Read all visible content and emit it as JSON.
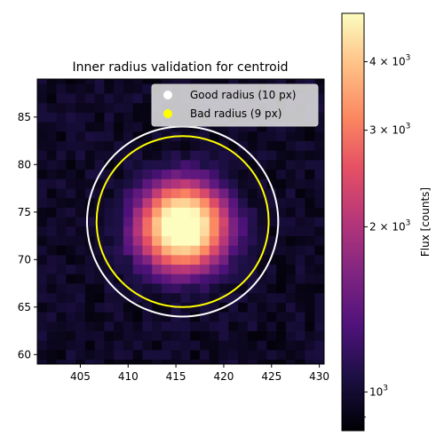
{
  "chart_data": {
    "type": "heatmap",
    "title": "Inner radius validation for centroid",
    "xlabel": "",
    "ylabel": "",
    "x_range": [
      400.5,
      430.5
    ],
    "y_range": [
      59.0,
      89.0
    ],
    "x_ticks": [
      405,
      410,
      415,
      420,
      425,
      430
    ],
    "y_ticks": [
      60,
      65,
      70,
      75,
      80,
      85
    ],
    "colormap": "magma",
    "colorbar": {
      "label": "Flux [counts]",
      "scale": "log",
      "range": [
        850,
        4900
      ],
      "ticks": [
        {
          "value": 1000,
          "base": "10",
          "exp": "3",
          "coef": ""
        },
        {
          "value": 2000,
          "base": "10",
          "exp": "3",
          "coef": "2 × "
        },
        {
          "value": 3000,
          "base": "10",
          "exp": "3",
          "coef": "3 × "
        },
        {
          "value": 4000,
          "base": "10",
          "exp": "3",
          "coef": "4 × "
        }
      ]
    },
    "source": {
      "center_x": 415.7,
      "center_y": 73.5,
      "peak_flux": 5200,
      "background_flux": 960,
      "sigma": 2.6
    },
    "circles": [
      {
        "name": "Good radius (10 px)",
        "center_x": 415.7,
        "center_y": 74.0,
        "radius": 10,
        "color": "#ffffff"
      },
      {
        "name": "Bad radius (9 px)",
        "center_x": 415.7,
        "center_y": 74.0,
        "radius": 9,
        "color": "#ffff00"
      }
    ],
    "legend": {
      "placement": "upper-right"
    }
  }
}
